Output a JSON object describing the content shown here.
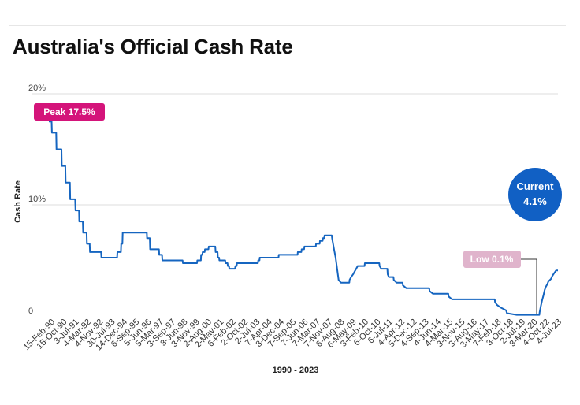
{
  "colors": {
    "line": "#1565c0",
    "peak_badge": "#d4147a",
    "low_badge": "#e0b4cc",
    "current_circle": "#1160c4",
    "grid": "#dddddd"
  },
  "chart_data": {
    "type": "line",
    "title": "Australia's Official Cash Rate",
    "xlabel": "1990 - 2023",
    "ylabel": "Cash Rate",
    "ylim": [
      0,
      20
    ],
    "yticks": [
      "0",
      "10%",
      "20%"
    ],
    "grid": true,
    "categories": [
      "15-Feb-90",
      "15-Oct-90",
      "3-Jul-91",
      "4-Mar-92",
      "4-Nov-92",
      "30-Jul-93",
      "14-Dec-94",
      "6-Sep-95",
      "5-Jun-96",
      "5-Mar-97",
      "3-Sep-97",
      "3-Jun-98",
      "3-Nov-99",
      "2-Aug-00",
      "2-May-01",
      "6-Feb-02",
      "2-Oct-02",
      "2-Jul-03",
      "7-Apr-04",
      "8-Dec-04",
      "7-Sep-05",
      "7-Jun-06",
      "7-Mar-07",
      "7-Nov-07",
      "6-Aug-08",
      "6-May-09",
      "3-Feb-10",
      "6-Oct-10",
      "6-Jul-11",
      "4-Apr-12",
      "5-Dec-12",
      "4-Sep-13",
      "4-Jun-14",
      "4-Mar-15",
      "3-Nov-15",
      "3-Aug-16",
      "3-May-17",
      "7-Feb-18",
      "3-Oct-18",
      "2-Jul-19",
      "3-Mar-20",
      "4-Oct-22",
      "4-Jul-23"
    ],
    "series": [
      {
        "values": [
          [
            1990.12,
            17.5
          ],
          [
            1990.3,
            17.5
          ],
          [
            1990.32,
            16.5
          ],
          [
            1990.6,
            16.5
          ],
          [
            1990.62,
            15.0
          ],
          [
            1990.95,
            15.0
          ],
          [
            1990.97,
            13.5
          ],
          [
            1991.2,
            13.5
          ],
          [
            1991.22,
            12.0
          ],
          [
            1991.5,
            12.0
          ],
          [
            1991.52,
            10.5
          ],
          [
            1991.85,
            10.5
          ],
          [
            1991.87,
            9.5
          ],
          [
            1992.1,
            9.5
          ],
          [
            1992.12,
            8.5
          ],
          [
            1992.35,
            8.5
          ],
          [
            1992.37,
            7.5
          ],
          [
            1992.6,
            7.5
          ],
          [
            1992.62,
            6.5
          ],
          [
            1992.8,
            6.5
          ],
          [
            1992.82,
            5.75
          ],
          [
            1993.55,
            5.75
          ],
          [
            1993.57,
            5.25
          ],
          [
            1994.6,
            5.25
          ],
          [
            1994.62,
            5.75
          ],
          [
            1994.85,
            5.75
          ],
          [
            1994.87,
            6.5
          ],
          [
            1994.95,
            6.5
          ],
          [
            1994.97,
            7.5
          ],
          [
            1996.55,
            7.5
          ],
          [
            1996.57,
            7.0
          ],
          [
            1996.75,
            7.0
          ],
          [
            1996.77,
            6.0
          ],
          [
            1997.35,
            6.0
          ],
          [
            1997.37,
            5.5
          ],
          [
            1997.55,
            5.5
          ],
          [
            1997.57,
            5.0
          ],
          [
            1998.9,
            5.0
          ],
          [
            1998.92,
            4.75
          ],
          [
            1999.85,
            4.75
          ],
          [
            1999.87,
            5.0
          ],
          [
            2000.1,
            5.0
          ],
          [
            2000.12,
            5.5
          ],
          [
            2000.2,
            5.5
          ],
          [
            2000.22,
            5.75
          ],
          [
            2000.35,
            5.75
          ],
          [
            2000.37,
            6.0
          ],
          [
            2000.6,
            6.0
          ],
          [
            2000.62,
            6.25
          ],
          [
            2001.05,
            6.25
          ],
          [
            2001.07,
            5.75
          ],
          [
            2001.2,
            5.75
          ],
          [
            2001.22,
            5.25
          ],
          [
            2001.3,
            5.25
          ],
          [
            2001.32,
            5.0
          ],
          [
            2001.7,
            5.0
          ],
          [
            2001.72,
            4.75
          ],
          [
            2001.85,
            4.75
          ],
          [
            2001.87,
            4.5
          ],
          [
            2001.95,
            4.5
          ],
          [
            2001.97,
            4.25
          ],
          [
            2002.35,
            4.25
          ],
          [
            2002.37,
            4.5
          ],
          [
            2002.45,
            4.5
          ],
          [
            2002.47,
            4.75
          ],
          [
            2003.85,
            4.75
          ],
          [
            2003.87,
            5.0
          ],
          [
            2003.95,
            5.0
          ],
          [
            2003.97,
            5.25
          ],
          [
            2005.2,
            5.25
          ],
          [
            2005.22,
            5.5
          ],
          [
            2006.45,
            5.5
          ],
          [
            2006.47,
            5.75
          ],
          [
            2006.7,
            5.75
          ],
          [
            2006.72,
            6.0
          ],
          [
            2006.88,
            6.0
          ],
          [
            2006.9,
            6.25
          ],
          [
            2007.65,
            6.25
          ],
          [
            2007.67,
            6.5
          ],
          [
            2007.9,
            6.5
          ],
          [
            2007.92,
            6.75
          ],
          [
            2008.1,
            6.75
          ],
          [
            2008.12,
            7.0
          ],
          [
            2008.2,
            7.0
          ],
          [
            2008.22,
            7.25
          ],
          [
            2008.7,
            7.25
          ],
          [
            2008.72,
            7.0
          ],
          [
            2008.85,
            6.0
          ],
          [
            2008.95,
            5.25
          ],
          [
            2009.05,
            4.25
          ],
          [
            2009.15,
            3.25
          ],
          [
            2009.3,
            3.0
          ],
          [
            2009.85,
            3.0
          ],
          [
            2009.87,
            3.25
          ],
          [
            2009.97,
            3.5
          ],
          [
            2010.1,
            3.75
          ],
          [
            2010.2,
            4.0
          ],
          [
            2010.3,
            4.25
          ],
          [
            2010.4,
            4.5
          ],
          [
            2010.85,
            4.5
          ],
          [
            2010.87,
            4.75
          ],
          [
            2011.82,
            4.75
          ],
          [
            2011.84,
            4.5
          ],
          [
            2011.95,
            4.25
          ],
          [
            2012.35,
            4.25
          ],
          [
            2012.37,
            3.75
          ],
          [
            2012.45,
            3.5
          ],
          [
            2012.75,
            3.5
          ],
          [
            2012.77,
            3.25
          ],
          [
            2012.95,
            3.0
          ],
          [
            2013.35,
            3.0
          ],
          [
            2013.37,
            2.75
          ],
          [
            2013.6,
            2.5
          ],
          [
            2015.1,
            2.5
          ],
          [
            2015.12,
            2.25
          ],
          [
            2015.35,
            2.0
          ],
          [
            2016.35,
            2.0
          ],
          [
            2016.37,
            1.75
          ],
          [
            2016.6,
            1.5
          ],
          [
            2019.4,
            1.5
          ],
          [
            2019.42,
            1.25
          ],
          [
            2019.55,
            1.0
          ],
          [
            2019.8,
            0.75
          ],
          [
            2020.15,
            0.5
          ],
          [
            2020.2,
            0.25
          ],
          [
            2020.85,
            0.1
          ],
          [
            2022.33,
            0.1
          ],
          [
            2022.35,
            0.35
          ],
          [
            2022.42,
            0.85
          ],
          [
            2022.5,
            1.35
          ],
          [
            2022.6,
            1.85
          ],
          [
            2022.68,
            2.35
          ],
          [
            2022.75,
            2.6
          ],
          [
            2022.85,
            2.85
          ],
          [
            2022.92,
            3.1
          ],
          [
            2023.1,
            3.35
          ],
          [
            2023.18,
            3.6
          ],
          [
            2023.3,
            3.85
          ],
          [
            2023.43,
            4.1
          ],
          [
            2023.55,
            4.1
          ]
        ]
      }
    ],
    "annotations": {
      "peak": "Peak 17.5%",
      "low": "Low 0.1%",
      "current_title": "Current",
      "current_value": "4.1%"
    }
  }
}
